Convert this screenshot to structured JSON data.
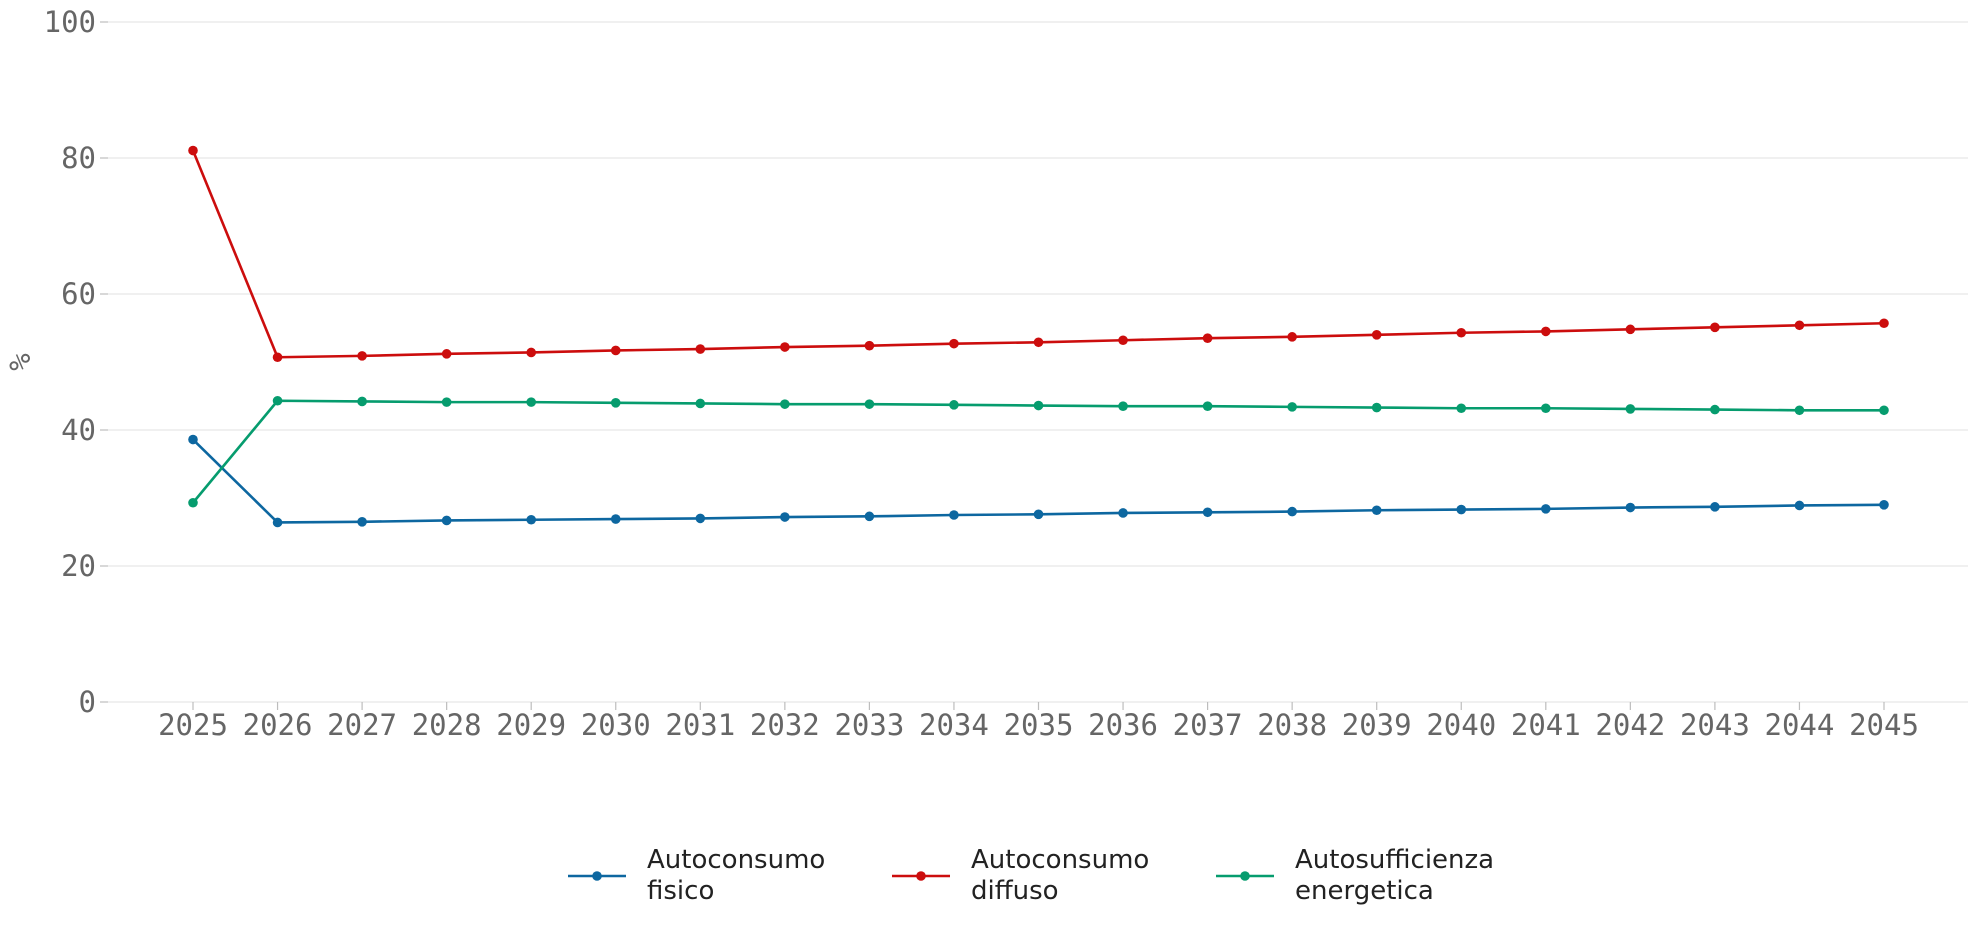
{
  "chart_data": {
    "type": "line",
    "title": "",
    "xlabel": "",
    "ylabel": "%",
    "ylim": [
      0,
      100
    ],
    "yticks": [
      0,
      20,
      40,
      60,
      80,
      100
    ],
    "grid": true,
    "legend_position": "bottom-center",
    "x": [
      2025,
      2026,
      2027,
      2028,
      2029,
      2030,
      2031,
      2032,
      2033,
      2034,
      2035,
      2036,
      2037,
      2038,
      2039,
      2040,
      2041,
      2042,
      2043,
      2044,
      2045
    ],
    "series": [
      {
        "name": "Autoconsumo fisico",
        "legend_lines": [
          "Autoconsumo",
          "fisico"
        ],
        "color": "#0d67a0",
        "values": [
          38.6,
          26.4,
          26.5,
          26.7,
          26.8,
          26.9,
          27.0,
          27.2,
          27.3,
          27.5,
          27.6,
          27.8,
          27.9,
          28.0,
          28.2,
          28.3,
          28.4,
          28.6,
          28.7,
          28.9,
          29.0
        ]
      },
      {
        "name": "Autoconsumo diffuso",
        "legend_lines": [
          "Autoconsumo",
          "diffuso"
        ],
        "color": "#cc0d0d",
        "values": [
          81.1,
          50.7,
          50.9,
          51.2,
          51.4,
          51.7,
          51.9,
          52.2,
          52.4,
          52.7,
          52.9,
          53.2,
          53.5,
          53.7,
          54.0,
          54.3,
          54.5,
          54.8,
          55.1,
          55.4,
          55.7
        ]
      },
      {
        "name": "Autosufficienza energetica",
        "legend_lines": [
          "Autosufficienza",
          "energetica"
        ],
        "color": "#069c6e",
        "values": [
          29.3,
          44.3,
          44.2,
          44.1,
          44.1,
          44.0,
          43.9,
          43.8,
          43.8,
          43.7,
          43.6,
          43.5,
          43.5,
          43.4,
          43.3,
          43.2,
          43.2,
          43.1,
          43.0,
          42.9,
          42.9
        ]
      }
    ]
  }
}
